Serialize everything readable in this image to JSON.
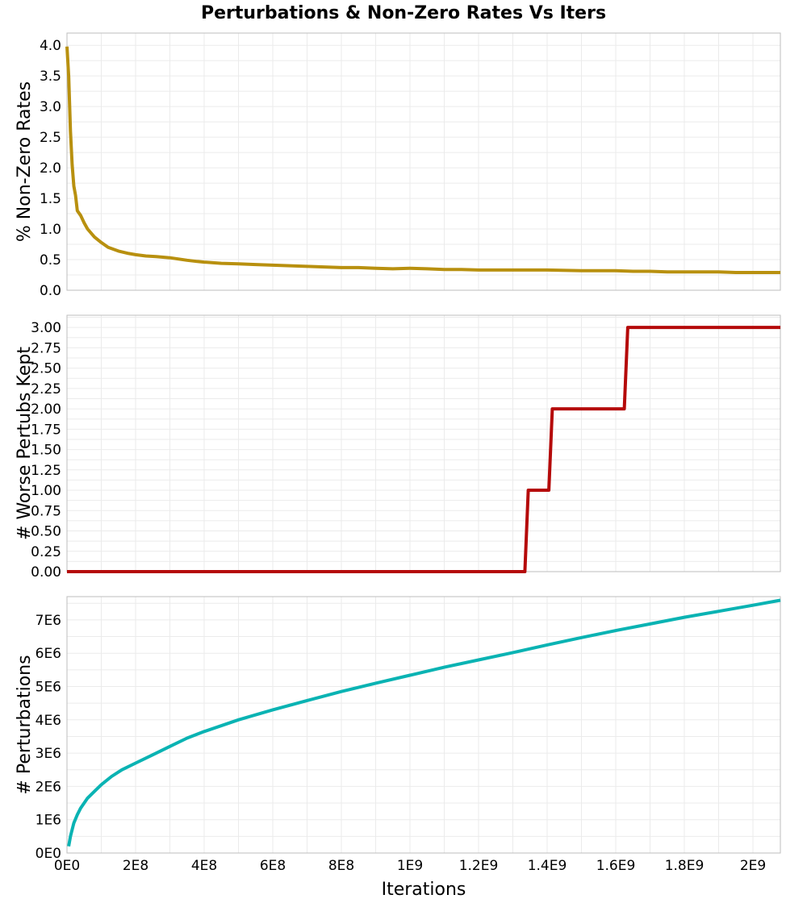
{
  "title": "Perturbations & Non-Zero Rates Vs Iters",
  "x_axis": {
    "label": "Iterations",
    "range": [
      0,
      2080000000
    ],
    "ticks": [
      0,
      200000000,
      400000000,
      600000000,
      800000000,
      1000000000,
      1200000000,
      1400000000,
      1600000000,
      1800000000,
      2000000000
    ],
    "tick_labels": [
      "0E0",
      "2E8",
      "4E8",
      "6E8",
      "8E8",
      "1E9",
      "1.2E9",
      "1.4E9",
      "1.6E9",
      "1.8E9",
      "2E9"
    ]
  },
  "chart_data": [
    {
      "type": "line",
      "ylabel": "% Non-Zero Rates",
      "ylim": [
        0,
        4.2
      ],
      "yticks": [
        0,
        0.5,
        1.0,
        1.5,
        2.0,
        2.5,
        3.0,
        3.5,
        4.0
      ],
      "ytick_labels": [
        "0.0",
        "0.5",
        "1.0",
        "1.5",
        "2.0",
        "2.5",
        "3.0",
        "3.5",
        "4.0"
      ],
      "color": "#b8900f",
      "grid": true,
      "series": [
        {
          "x": [
            0,
            5000000,
            10000000,
            15000000,
            20000000,
            25000000,
            30000000,
            40000000,
            50000000,
            60000000,
            80000000,
            100000000,
            120000000,
            150000000,
            180000000,
            200000000,
            230000000,
            260000000,
            300000000,
            350000000,
            380000000,
            400000000,
            450000000,
            500000000,
            550000000,
            600000000,
            650000000,
            700000000,
            750000000,
            800000000,
            850000000,
            900000000,
            950000000,
            1000000000,
            1050000000,
            1100000000,
            1150000000,
            1200000000,
            1300000000,
            1400000000,
            1500000000,
            1600000000,
            1650000000,
            1700000000,
            1750000000,
            1800000000,
            1850000000,
            1900000000,
            1950000000,
            2000000000,
            2080000000
          ],
          "y": [
            3.98,
            3.5,
            2.6,
            2.05,
            1.7,
            1.55,
            1.3,
            1.22,
            1.1,
            1.0,
            0.87,
            0.78,
            0.7,
            0.64,
            0.6,
            0.58,
            0.56,
            0.55,
            0.53,
            0.49,
            0.47,
            0.46,
            0.44,
            0.43,
            0.42,
            0.41,
            0.4,
            0.39,
            0.38,
            0.37,
            0.37,
            0.36,
            0.35,
            0.36,
            0.35,
            0.34,
            0.34,
            0.33,
            0.33,
            0.33,
            0.32,
            0.32,
            0.31,
            0.31,
            0.3,
            0.3,
            0.3,
            0.3,
            0.29,
            0.29,
            0.29
          ]
        }
      ]
    },
    {
      "type": "line",
      "ylabel": "# Worse Pertubs Kept",
      "ylim": [
        0,
        3.15
      ],
      "yticks": [
        0,
        0.25,
        0.5,
        0.75,
        1.0,
        1.25,
        1.5,
        1.75,
        2.0,
        2.25,
        2.5,
        2.75,
        3.0
      ],
      "ytick_labels": [
        "0.00",
        "0.25",
        "0.50",
        "0.75",
        "1.00",
        "1.25",
        "1.50",
        "1.75",
        "2.00",
        "2.25",
        "2.50",
        "2.75",
        "3.00"
      ],
      "color": "#b50a0a",
      "grid": true,
      "series": [
        {
          "x": [
            0,
            1335000000,
            1345000000,
            1405000000,
            1415000000,
            1625000000,
            1635000000,
            2080000000
          ],
          "y": [
            0,
            0,
            1,
            1,
            2,
            2,
            3,
            3
          ]
        }
      ]
    },
    {
      "type": "line",
      "ylabel": "# Perturbations",
      "ylim": [
        0,
        7700000
      ],
      "yticks": [
        0,
        1000000,
        2000000,
        3000000,
        4000000,
        5000000,
        6000000,
        7000000
      ],
      "ytick_labels": [
        "0E0",
        "1E6",
        "2E6",
        "3E6",
        "4E6",
        "5E6",
        "6E6",
        "7E6"
      ],
      "color": "#0ab3b3",
      "grid": true,
      "series": [
        {
          "x": [
            5000000,
            10000000,
            20000000,
            30000000,
            40000000,
            60000000,
            80000000,
            100000000,
            130000000,
            160000000,
            200000000,
            250000000,
            300000000,
            350000000,
            400000000,
            500000000,
            600000000,
            700000000,
            800000000,
            900000000,
            1000000000,
            1100000000,
            1200000000,
            1300000000,
            1400000000,
            1500000000,
            1600000000,
            1700000000,
            1800000000,
            1900000000,
            2000000000,
            2080000000
          ],
          "y": [
            200000,
            500000,
            900000,
            1150000,
            1350000,
            1650000,
            1850000,
            2050000,
            2300000,
            2500000,
            2700000,
            2950000,
            3200000,
            3450000,
            3650000,
            4000000,
            4300000,
            4580000,
            4850000,
            5100000,
            5340000,
            5580000,
            5800000,
            6020000,
            6250000,
            6470000,
            6680000,
            6880000,
            7080000,
            7260000,
            7440000,
            7590000
          ]
        }
      ]
    }
  ]
}
